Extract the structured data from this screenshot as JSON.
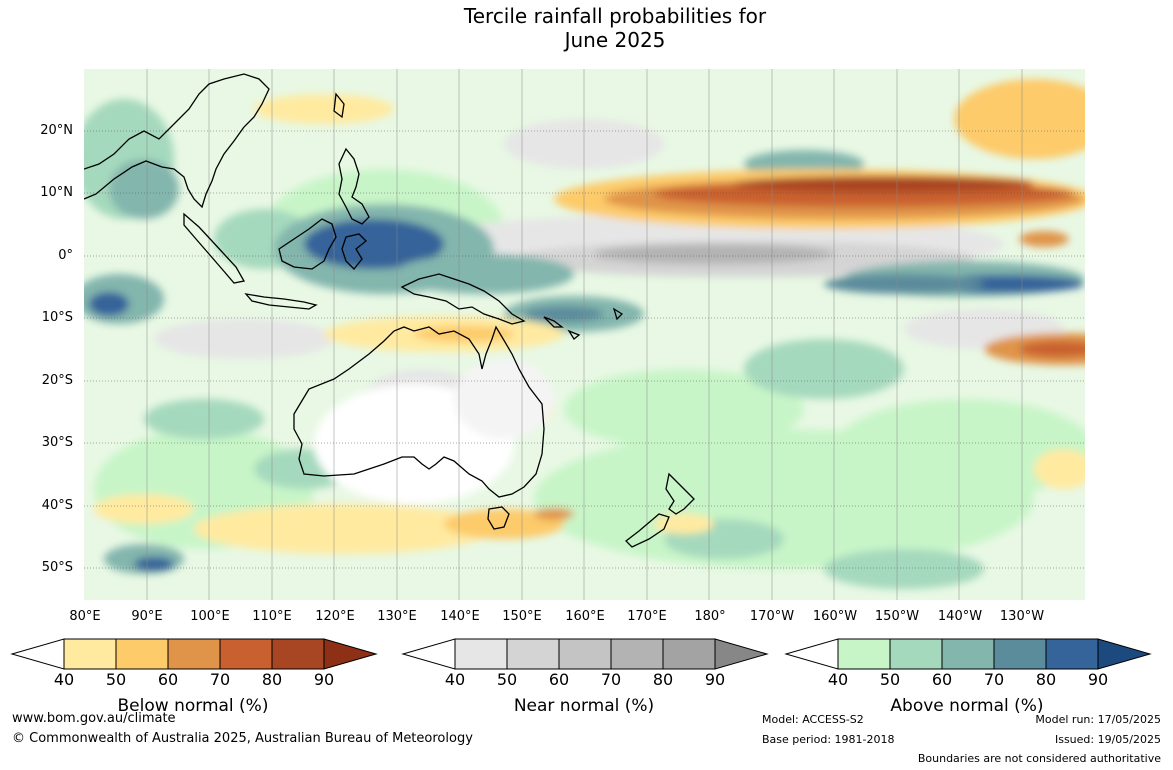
{
  "title": {
    "line1": "Tercile rainfall probabilities for",
    "line2": "June 2025"
  },
  "map": {
    "latitude_labels": [
      "20°N",
      "10°N",
      "0°",
      "10°S",
      "20°S",
      "30°S",
      "40°S",
      "50°S"
    ],
    "longitude_labels": [
      "80°E",
      "90°E",
      "100°E",
      "110°E",
      "120°E",
      "130°E",
      "140°E",
      "150°E",
      "160°E",
      "170°E",
      "180°",
      "170°W",
      "160°W",
      "150°W",
      "140°W",
      "130°W"
    ],
    "region": "Indo-Pacific: Australia, Maritime Continent, Western and Central Pacific"
  },
  "legends": [
    {
      "title": "Below normal (%)",
      "ticks": [
        "40",
        "50",
        "60",
        "70",
        "80",
        "90"
      ],
      "colors": [
        "#ffffff",
        "#ffeaa0",
        "#fdcb6a",
        "#e09449",
        "#c9602f",
        "#a84522",
        "#8d3015"
      ]
    },
    {
      "title": "Near normal (%)",
      "ticks": [
        "40",
        "50",
        "60",
        "70",
        "80",
        "90"
      ],
      "colors": [
        "#ffffff",
        "#e6e6e6",
        "#d4d4d4",
        "#c4c4c4",
        "#b3b3b3",
        "#a3a3a3",
        "#878787"
      ]
    },
    {
      "title": "Above normal (%)",
      "ticks": [
        "40",
        "50",
        "60",
        "70",
        "80",
        "90"
      ],
      "colors": [
        "#ffffff",
        "#c8f5c8",
        "#a5d9bd",
        "#83b6ad",
        "#5b8c9c",
        "#34649a",
        "#1d4a7e"
      ]
    }
  ],
  "footer": {
    "website": "www.bom.gov.au/climate",
    "copyright": "© Commonwealth of Australia 2025, Australian Bureau of Meteorology",
    "model": "Model: ACCESS-S2",
    "base_period": "Base period: 1981-2018",
    "model_run": "Model run: 17/05/2025",
    "issued": "Issued: 19/05/2025",
    "disclaimer": "Boundaries are not considered authoritative"
  }
}
